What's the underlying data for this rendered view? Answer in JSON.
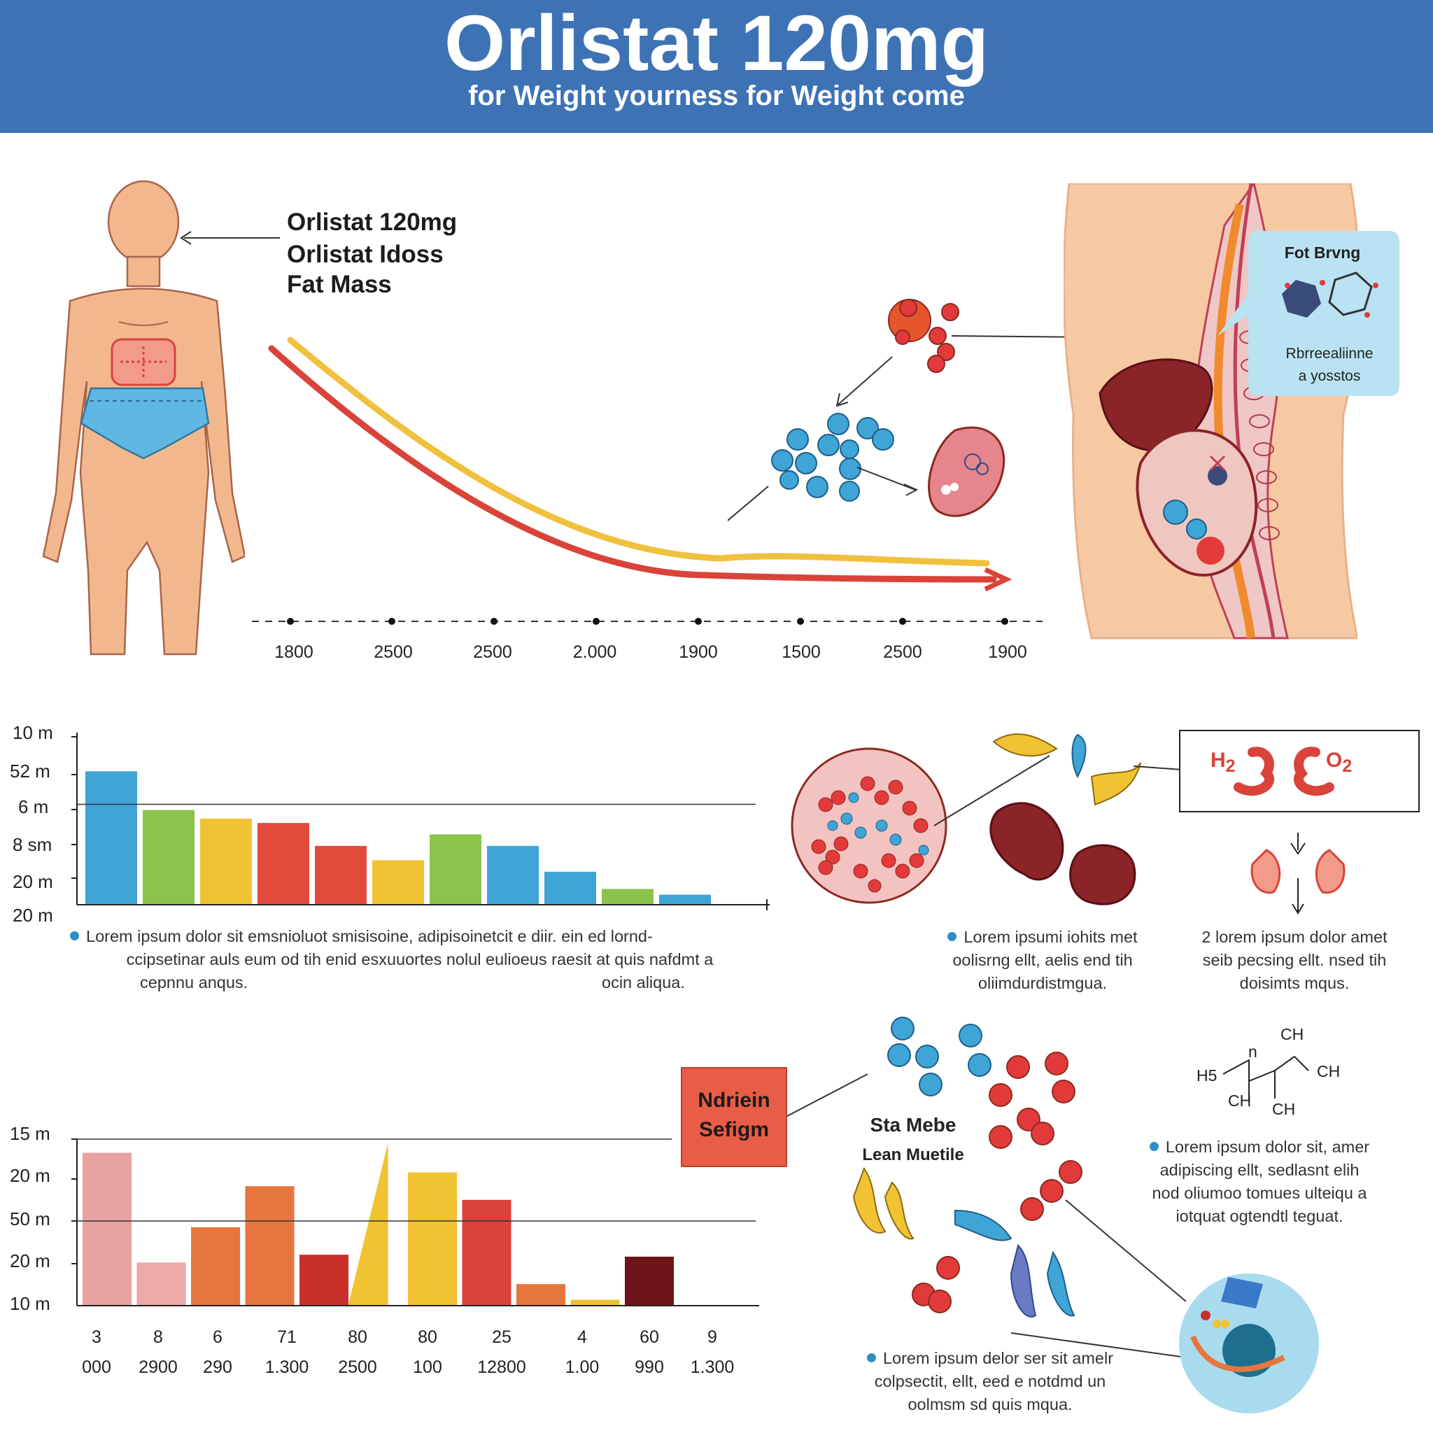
{
  "header": {
    "title": "Orlistat 120mg",
    "subtitle": "for Weight yourness for Weight come"
  },
  "colors": {
    "header_bg": "#3d72b5",
    "skin": "#f3b78e",
    "underwear": "#5fb7e4",
    "line_red": "#d9433a",
    "line_yellow": "#f0c13e",
    "bubble": "#b9e3f3"
  },
  "body_labels": [
    "Orlistat 120mg",
    "Orlistat Idoss",
    "Fat Mass"
  ],
  "timeline_ticks": [
    "1800",
    "2500",
    "2500",
    "2.000",
    "1900",
    "1500",
    "2500",
    "1900"
  ],
  "digestion_bubble": {
    "title": "Fot Brvng",
    "caption_line1": "Rbrreealiinne",
    "caption_line2": "a yosstos"
  },
  "chart1": {
    "y_ticks": [
      "10 m",
      "52 m",
      "6 m",
      "8 sm",
      "20 m",
      "20 m"
    ],
    "bars": [
      {
        "value": 93,
        "color": "#3fa4d6"
      },
      {
        "value": 66,
        "color": "#8cc34a"
      },
      {
        "value": 60,
        "color": "#f1c232"
      },
      {
        "value": 57,
        "color": "#e24a3b"
      },
      {
        "value": 41,
        "color": "#e24a3b"
      },
      {
        "value": 31,
        "color": "#f1c232"
      },
      {
        "value": 49,
        "color": "#8cc34a"
      },
      {
        "value": 41,
        "color": "#3fa4d6"
      },
      {
        "value": 23,
        "color": "#3fa4d6"
      },
      {
        "value": 11,
        "color": "#8cc34a"
      },
      {
        "value": 7,
        "color": "#3fa4d6"
      }
    ],
    "ref_line": 70
  },
  "chart1_text": {
    "line1": "Lorem ipsum dolor sit  emsnioluot smisisoine, adipisoinetcit e diir. ein ed lornd-",
    "line2": "ccipsetinar auls eum od tih enid esxuuortes nolul eulioeus raesit at quis nafdmt a",
    "line3a": "cepnnu anqus.",
    "line3b": "ocin aliqua."
  },
  "mid_text_a": {
    "line1": "Lorem ipsumi iohits met",
    "line2": "oolisrng ellt, aelis end tih",
    "line3": "oliimdurdistmgua."
  },
  "mid_text_b": {
    "line1": "2 lorem ipsum dolor amet",
    "line2": "seib pecsing ellt. nsed tih",
    "line3": "doisimts mqus."
  },
  "h2o2": {
    "left": "H",
    "left_sub": "2",
    "right": "O",
    "right_sub": "2"
  },
  "chart2": {
    "y_ticks": [
      "15 m",
      "20 m",
      "50 m",
      "20 m",
      "10 m"
    ],
    "bars": [
      {
        "value": 78,
        "color": "#e8a3a1",
        "shape": "rect"
      },
      {
        "value": 22,
        "color": "#eca9a8",
        "shape": "rect"
      },
      {
        "value": 40,
        "color": "#e6763d",
        "shape": "rect"
      },
      {
        "value": 61,
        "color": "#e6763d",
        "shape": "rect"
      },
      {
        "value": 26,
        "color": "#c9302c",
        "shape": "rect"
      },
      {
        "value": 83,
        "color": "#f1c232",
        "shape": "triangle"
      },
      {
        "value": 68,
        "color": "#f1c232",
        "shape": "rect"
      },
      {
        "value": 54,
        "color": "#d9433a",
        "shape": "rect"
      },
      {
        "value": 11,
        "color": "#e6763d",
        "shape": "rect"
      },
      {
        "value": 3,
        "color": "#f1c232",
        "shape": "rect"
      },
      {
        "value": 25,
        "color": "#6e1418",
        "shape": "rect"
      }
    ],
    "x_top": [
      "3",
      "8",
      "6",
      "71",
      "80",
      "80",
      "25",
      "4",
      "60",
      "9"
    ],
    "x_bottom": [
      "000",
      "2900",
      "290",
      "1.300",
      "2500",
      "100",
      "12800",
      "1.00",
      "990",
      "1.300"
    ]
  },
  "red_box": {
    "line1": "Ndriein",
    "line2": "Sefigm"
  },
  "lean_labels": {
    "top": "Sta Mebe",
    "bottom": "Lean Muetile"
  },
  "chem_labels": [
    "CH",
    "H5",
    "CH",
    "CH",
    "CH",
    "n"
  ],
  "right_text": {
    "line1": "Lorem ipsum dolor sit,  amer",
    "line2": "adipiscing ellt, sedlasnt elih",
    "line3": "nod  oliumoo tomues ulteiqu a",
    "line4": "iotquat ogtendtl teguat."
  },
  "bottom_text": {
    "line1": "Lorem ipsum delor ser sit amelr",
    "line2": "colpsectit, ellt, eed e notdmd un",
    "line3": "oolmsm sd quis mqua."
  }
}
